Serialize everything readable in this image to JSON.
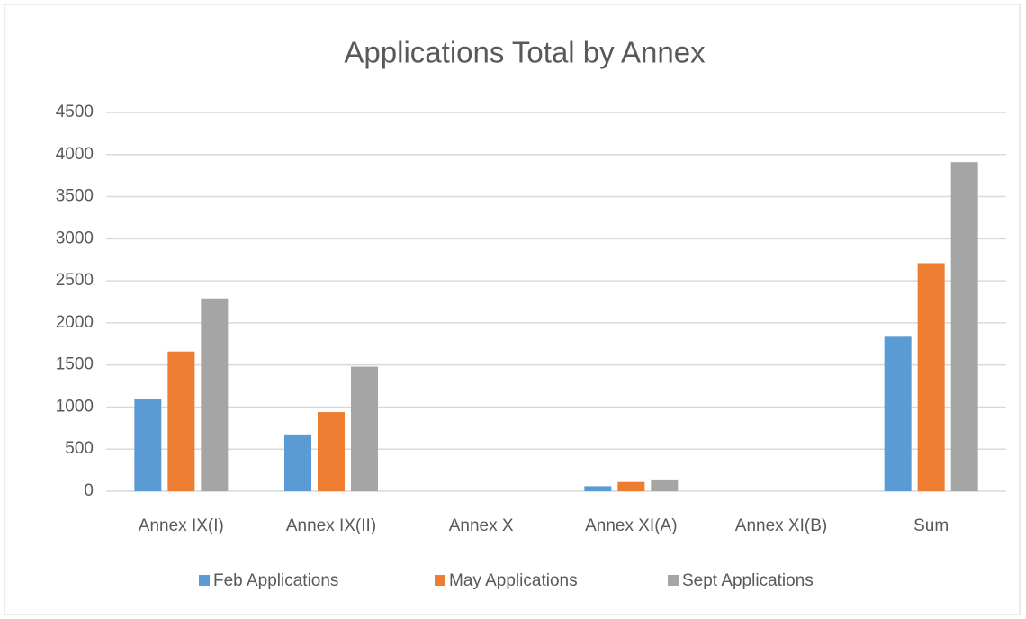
{
  "chart_data": {
    "type": "bar",
    "title": "Applications Total by Annex",
    "categories": [
      "Annex IX(I)",
      "Annex IX(II)",
      "Annex X",
      "Annex XI(A)",
      "Annex XI(B)",
      "Sum"
    ],
    "series": [
      {
        "name": "Feb Applications",
        "color": "#5b9bd5",
        "values": [
          1100,
          675,
          0,
          60,
          0,
          1835
        ]
      },
      {
        "name": "May Applications",
        "color": "#ed7d31",
        "values": [
          1660,
          940,
          0,
          110,
          0,
          2710
        ]
      },
      {
        "name": "Sept Applications",
        "color": "#a5a5a5",
        "values": [
          2290,
          1480,
          0,
          140,
          0,
          3910
        ]
      }
    ],
    "ylim": [
      0,
      4500
    ],
    "yticks": [
      0,
      500,
      1000,
      1500,
      2000,
      2500,
      3000,
      3500,
      4000,
      4500
    ],
    "grid": true,
    "legend": "bottom"
  }
}
